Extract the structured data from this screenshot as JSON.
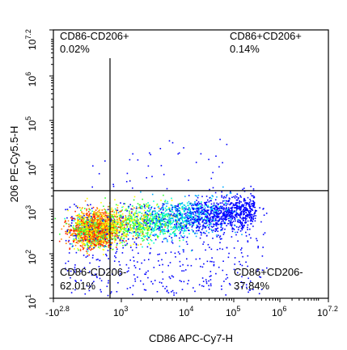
{
  "chart_data": {
    "type": "scatter",
    "subtype": "flow-cytometry-density-dot-plot",
    "xlabel": "CD86 APC-Cy7-H",
    "ylabel": "206 PE-Cy5.5-H",
    "x_scale": "biexponential-log",
    "y_scale": "log",
    "x_ticks": [
      {
        "base": "-10",
        "exp": "2.8",
        "value": -631
      },
      {
        "base": "10",
        "exp": "3",
        "value": 1000
      },
      {
        "base": "10",
        "exp": "4",
        "value": 10000
      },
      {
        "base": "10",
        "exp": "5",
        "value": 100000
      },
      {
        "base": "10",
        "exp": "6",
        "value": 1000000
      },
      {
        "base": "10",
        "exp": "7.2",
        "value": 15848932
      }
    ],
    "y_ticks": [
      {
        "base": "10",
        "exp": "1",
        "value": 10
      },
      {
        "base": "10",
        "exp": "2",
        "value": 100
      },
      {
        "base": "10",
        "exp": "3",
        "value": 1000
      },
      {
        "base": "10",
        "exp": "4",
        "value": 10000
      },
      {
        "base": "10",
        "exp": "5",
        "value": 100000
      },
      {
        "base": "10",
        "exp": "6",
        "value": 1000000
      },
      {
        "base": "10",
        "exp": "7.2",
        "value": 15848932
      }
    ],
    "gates": {
      "x_threshold_log": 2.9,
      "y_threshold_log": 3.42
    },
    "quadrants": [
      {
        "name": "CD86-CD206+",
        "percent": "0.02%",
        "position": "top-left"
      },
      {
        "name": "CD86+CD206+",
        "percent": "0.14%",
        "position": "top-right"
      },
      {
        "name": "CD86-CD206-",
        "percent": "62.01%",
        "position": "bottom-left"
      },
      {
        "name": "CD86+CD206-",
        "percent": "37.84%",
        "position": "bottom-right"
      }
    ],
    "density_colormap": [
      "#0000ff",
      "#00aaff",
      "#00ffcc",
      "#33ff33",
      "#ffff00",
      "#ff8800",
      "#ff2200"
    ],
    "grid": false
  }
}
